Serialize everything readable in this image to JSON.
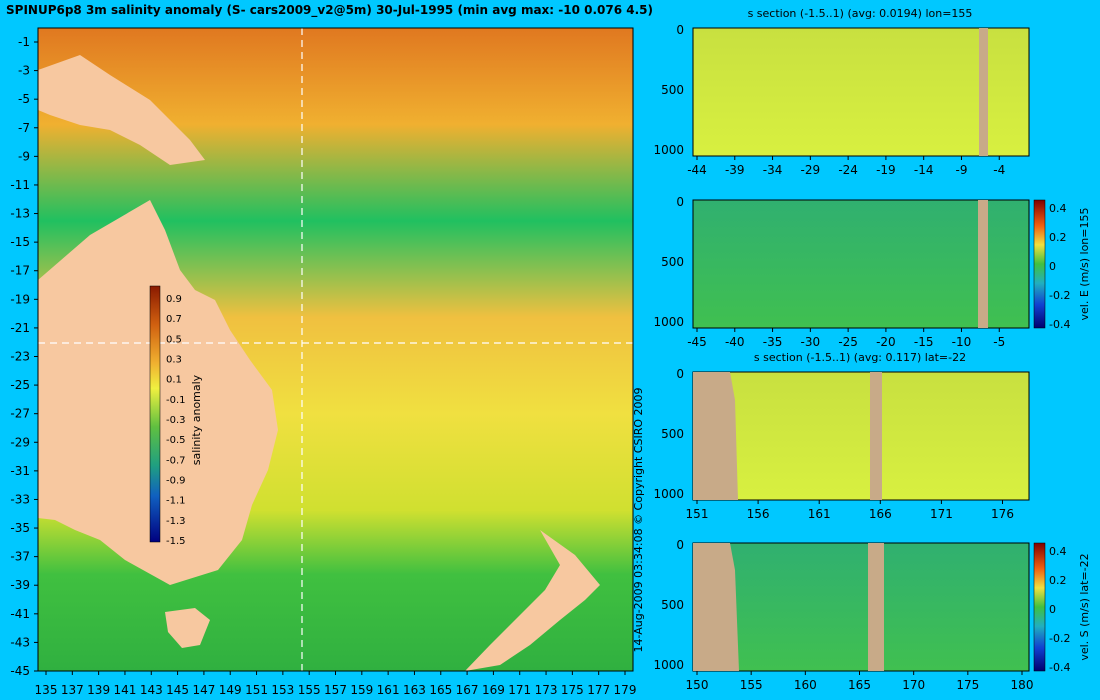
{
  "title": "SPINUP6p8 3m salinity anomaly (S- cars2009_v2@5m) 30-Jul-1995 (min avg max: -10 0.076 4.5)",
  "copyright": "14-Aug-2009 03:34:08  © Copyright CSIRO 2009",
  "colors": {
    "background": "#00c8ff",
    "land": "#f7c8a0",
    "section_land": "#c8aa88",
    "crosshair": "#ffffff"
  },
  "chart_data": [
    {
      "type": "heatmap",
      "title": "",
      "xlabel": "",
      "ylabel": "",
      "x_ticks": [
        "135",
        "137",
        "139",
        "141",
        "143",
        "145",
        "147",
        "149",
        "151",
        "153",
        "155",
        "157",
        "159",
        "161",
        "163",
        "165",
        "167",
        "169",
        "171",
        "173",
        "175",
        "177",
        "179"
      ],
      "y_ticks": [
        "-1",
        "-3",
        "-5",
        "-7",
        "-9",
        "-11",
        "-13",
        "-15",
        "-17",
        "-19",
        "-21",
        "-23",
        "-25",
        "-27",
        "-29",
        "-31",
        "-33",
        "-35",
        "-37",
        "-39",
        "-41",
        "-43",
        "-45"
      ],
      "xlim": [
        135,
        180
      ],
      "ylim": [
        -45,
        0
      ],
      "colorbar": {
        "label": "salinity anomaly",
        "ticks": [
          "0.9",
          "0.7",
          "0.5",
          "0.3",
          "0.1",
          "-0.1",
          "-0.3",
          "-0.5",
          "-0.7",
          "-0.9",
          "-1.1",
          "-1.3",
          "-1.5"
        ]
      },
      "crosshair": {
        "lon": 155,
        "lat": -22
      }
    },
    {
      "type": "heatmap",
      "title": "s section (-1.5..1) (avg: 0.0194) lon=155",
      "x_ticks": [
        "-44",
        "-39",
        "-34",
        "-29",
        "-24",
        "-19",
        "-14",
        "-9",
        "-4"
      ],
      "y_ticks": [
        "0",
        "500",
        "1000"
      ],
      "colorbar_label": ""
    },
    {
      "type": "heatmap",
      "title": "",
      "x_ticks": [
        "-45",
        "-40",
        "-35",
        "-30",
        "-25",
        "-20",
        "-15",
        "-10",
        "-5"
      ],
      "y_ticks": [
        "0",
        "500",
        "1000"
      ],
      "colorbar_label": "vel. E (m/s) lon=155",
      "colorbar_ticks": [
        "0.4",
        "0.2",
        "0",
        "-0.2",
        "-0.4"
      ]
    },
    {
      "type": "heatmap",
      "title": "s section (-1.5..1) (avg: 0.117) lat=-22",
      "x_ticks": [
        "151",
        "156",
        "161",
        "166",
        "171",
        "176"
      ],
      "y_ticks": [
        "0",
        "500",
        "1000"
      ],
      "colorbar_label": ""
    },
    {
      "type": "heatmap",
      "title": "",
      "x_ticks": [
        "150",
        "155",
        "160",
        "165",
        "170",
        "175",
        "180"
      ],
      "y_ticks": [
        "0",
        "500",
        "1000"
      ],
      "colorbar_label": "vel. S (m/s) lat=-22",
      "colorbar_ticks": [
        "0.4",
        "0.2",
        "0",
        "-0.2",
        "-0.4"
      ]
    }
  ]
}
